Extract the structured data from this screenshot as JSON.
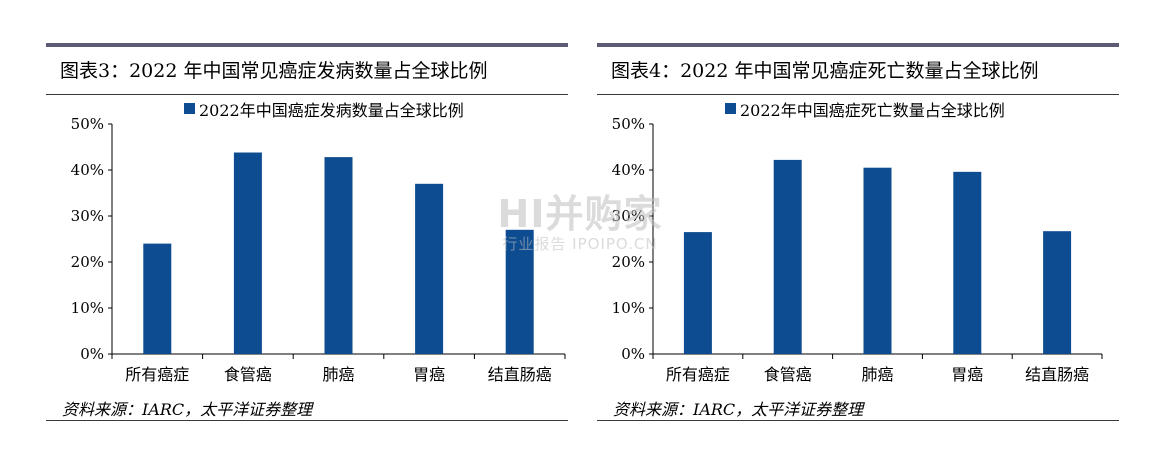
{
  "colors": {
    "bar": "#0e4c92",
    "rule_top": "#5b5b73",
    "axis": "#000000"
  },
  "watermark": {
    "main": "HI并购家",
    "sub": "行业报告 IPOIPO.CN"
  },
  "chart_data": [
    {
      "type": "bar",
      "title": "图表3：2022 年中国常见癌症发病数量占全球比例",
      "categories": [
        "所有癌症",
        "食管癌",
        "肺癌",
        "胃癌",
        "结直肠癌"
      ],
      "series": [
        {
          "name": "2022年中国癌症发病数量占全球比例",
          "values": [
            24,
            43.8,
            42.8,
            37,
            27
          ]
        }
      ],
      "ylim": [
        0,
        50
      ],
      "yticks": [
        "0%",
        "10%",
        "20%",
        "30%",
        "40%",
        "50%"
      ],
      "legend": "top",
      "grid": false,
      "source": "资料来源：IARC，太平洋证券整理"
    },
    {
      "type": "bar",
      "title": "图表4：2022 年中国常见癌症死亡数量占全球比例",
      "categories": [
        "所有癌症",
        "食管癌",
        "肺癌",
        "胃癌",
        "结直肠癌"
      ],
      "series": [
        {
          "name": "2022年中国癌症死亡数量占全球比例",
          "values": [
            26.5,
            42.2,
            40.5,
            39.6,
            26.7
          ]
        }
      ],
      "ylim": [
        0,
        50
      ],
      "yticks": [
        "0%",
        "10%",
        "20%",
        "30%",
        "40%",
        "50%"
      ],
      "legend": "top",
      "grid": false,
      "source": "资料来源：IARC，太平洋证券整理"
    }
  ]
}
